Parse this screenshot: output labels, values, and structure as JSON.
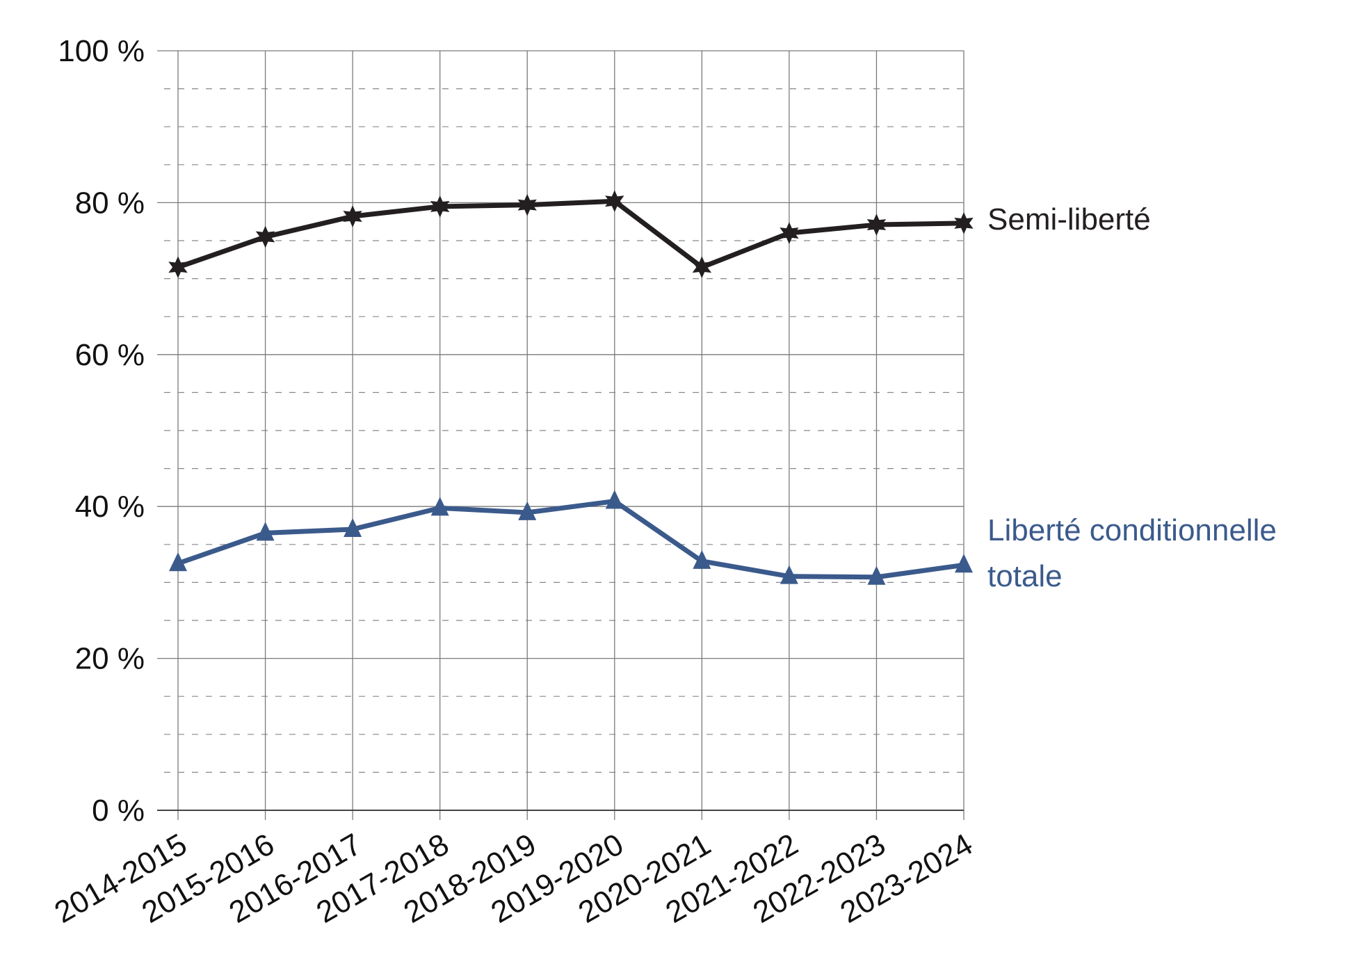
{
  "chart_data": {
    "type": "line",
    "categories": [
      "2014-2015",
      "2015-2016",
      "2016-2017",
      "2017-2018",
      "2018-2019",
      "2019-2020",
      "2020-2021",
      "2021-2022",
      "2022-2023",
      "2023-2024"
    ],
    "y_ticks": [
      "0 %",
      "20 %",
      "40 %",
      "60 %",
      "80 %",
      "100 %"
    ],
    "ylim": [
      0,
      100
    ],
    "grid": true,
    "series": [
      {
        "name": "Semi-liberté",
        "label_lines": [
          "Semi-liberté"
        ],
        "color": "#231f20",
        "marker": "star",
        "values": [
          71.5,
          75.5,
          78.2,
          79.5,
          79.7,
          80.2,
          71.5,
          76.0,
          77.1,
          77.3
        ]
      },
      {
        "name": "Liberté conditionnelle totale",
        "label_lines": [
          "Liberté conditionnelle",
          "totale"
        ],
        "color": "#3b5a8c",
        "marker": "triangle",
        "values": [
          32.5,
          36.5,
          37.0,
          39.8,
          39.2,
          40.7,
          32.8,
          30.8,
          30.7,
          32.3
        ]
      }
    ]
  }
}
